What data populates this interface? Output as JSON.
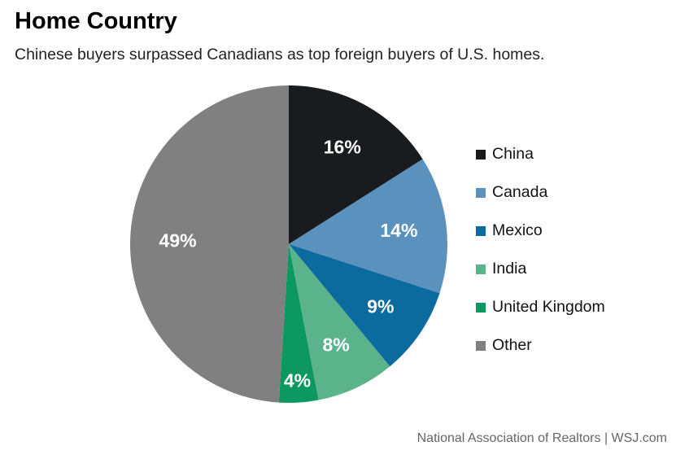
{
  "title": "Home Country",
  "subtitle": "Chinese buyers surpassed Canadians as top foreign buyers of U.S. homes.",
  "source": "National Association of Realtors  |  WSJ.com",
  "chart_data": {
    "type": "pie",
    "title": "Home Country",
    "subtitle": "Chinese buyers surpassed Canadians as top foreign buyers of U.S. homes.",
    "start_angle": "12 o'clock, clockwise",
    "legend_position": "right",
    "slices": [
      {
        "label": "China",
        "value": 16,
        "display": "16%",
        "color": "#1a1b1e"
      },
      {
        "label": "Canada",
        "value": 14,
        "display": "14%",
        "color": "#5a92bd"
      },
      {
        "label": "Mexico",
        "value": 9,
        "display": "9%",
        "color": "#0b6a9e"
      },
      {
        "label": "India",
        "value": 8,
        "display": "8%",
        "color": "#5bb38b"
      },
      {
        "label": "United Kingdom",
        "value": 4,
        "display": "4%",
        "color": "#0c9860"
      },
      {
        "label": "Other",
        "value": 49,
        "display": "49%",
        "color": "#7f807f"
      }
    ]
  }
}
